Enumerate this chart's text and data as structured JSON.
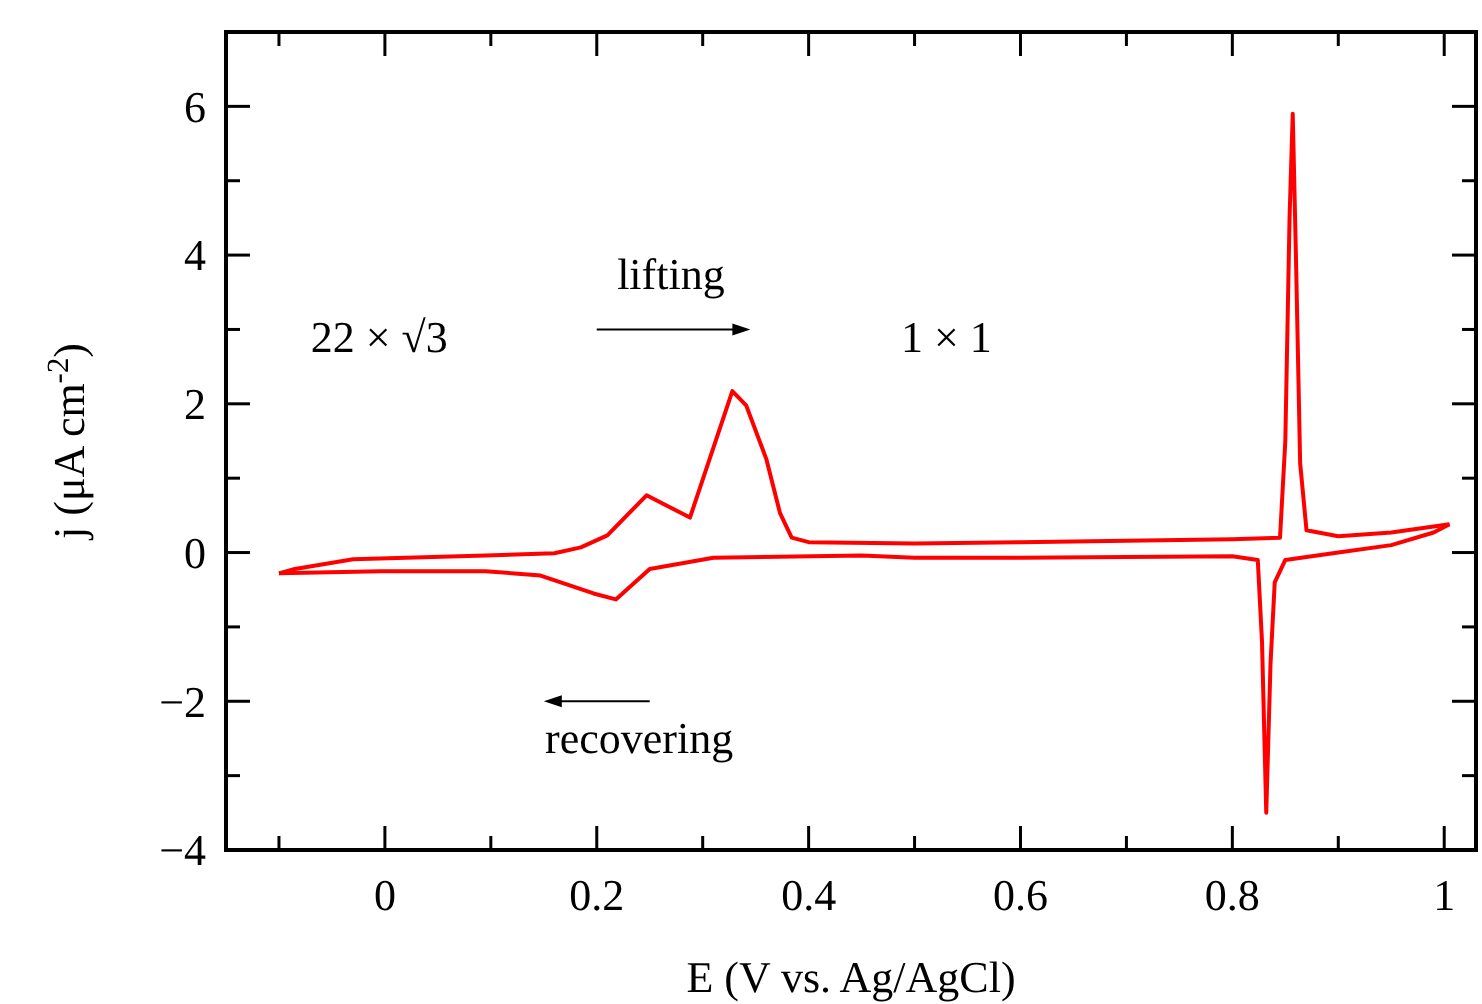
{
  "chart_data": {
    "type": "line",
    "xlabel": "E (V vs. Ag/AgCl)",
    "ylabel": "j (μA cm$^{-2}$)",
    "xlim": [
      -0.15,
      1.03
    ],
    "ylim": [
      -4,
      7
    ],
    "xticks": [
      {
        "value": -0.1,
        "label": null
      },
      0,
      {
        "value": 0.1,
        "label": null
      },
      0.2,
      {
        "value": 0.3,
        "label": null
      },
      0.4,
      {
        "value": 0.5,
        "label": null
      },
      0.6,
      {
        "value": 0.7,
        "label": null
      },
      0.8,
      {
        "value": 0.9,
        "label": null
      },
      1
    ],
    "yticks": [
      -4,
      {
        "value": -3,
        "label": null
      },
      -2,
      {
        "value": -1,
        "label": null
      },
      0,
      {
        "value": 1,
        "label": null
      },
      2,
      {
        "value": 3,
        "label": null
      },
      4,
      {
        "value": 5,
        "label": null
      },
      6,
      {
        "value": 7,
        "label": null
      }
    ],
    "grid": false,
    "line_style": "solid",
    "annotations": [
      "22 × √3",
      "lifting",
      "1 × 1",
      "recovering"
    ],
    "series": [
      {
        "color": "#ff0000",
        "x": [
          -0.1,
          -0.085,
          -0.03,
          0.095,
          0.16,
          0.185,
          0.21,
          0.247,
          0.288,
          0.328,
          0.341,
          0.36,
          0.373,
          0.384,
          0.4,
          0.5,
          0.6,
          0.7,
          0.8,
          0.845,
          0.85,
          0.854,
          0.857,
          0.86,
          0.864,
          0.87,
          0.9,
          0.95,
          1.005
        ],
        "values": [
          -0.28,
          -0.22,
          -0.09,
          -0.04,
          -0.01,
          0.07,
          0.23,
          0.77,
          0.47,
          2.17,
          1.98,
          1.26,
          0.53,
          0.2,
          0.14,
          0.12,
          0.14,
          0.16,
          0.18,
          0.2,
          1.5,
          4.5,
          5.9,
          4.0,
          1.2,
          0.3,
          0.22,
          0.27,
          0.38
        ]
      },
      {
        "color": "#ff0000",
        "x": [
          -0.1,
          -0.004,
          0.095,
          0.147,
          0.197,
          0.218,
          0.25,
          0.31,
          0.45,
          0.5,
          0.6,
          0.7,
          0.8,
          0.824,
          0.828,
          0.832,
          0.836,
          0.84,
          0.85,
          0.9,
          0.95,
          0.99,
          1.005
        ],
        "values": [
          -0.28,
          -0.25,
          -0.25,
          -0.31,
          -0.55,
          -0.63,
          -0.22,
          -0.07,
          -0.04,
          -0.07,
          -0.07,
          -0.06,
          -0.05,
          -0.1,
          -1.2,
          -3.5,
          -1.5,
          -0.4,
          -0.1,
          0.0,
          0.1,
          0.27,
          0.38
        ]
      }
    ]
  }
}
